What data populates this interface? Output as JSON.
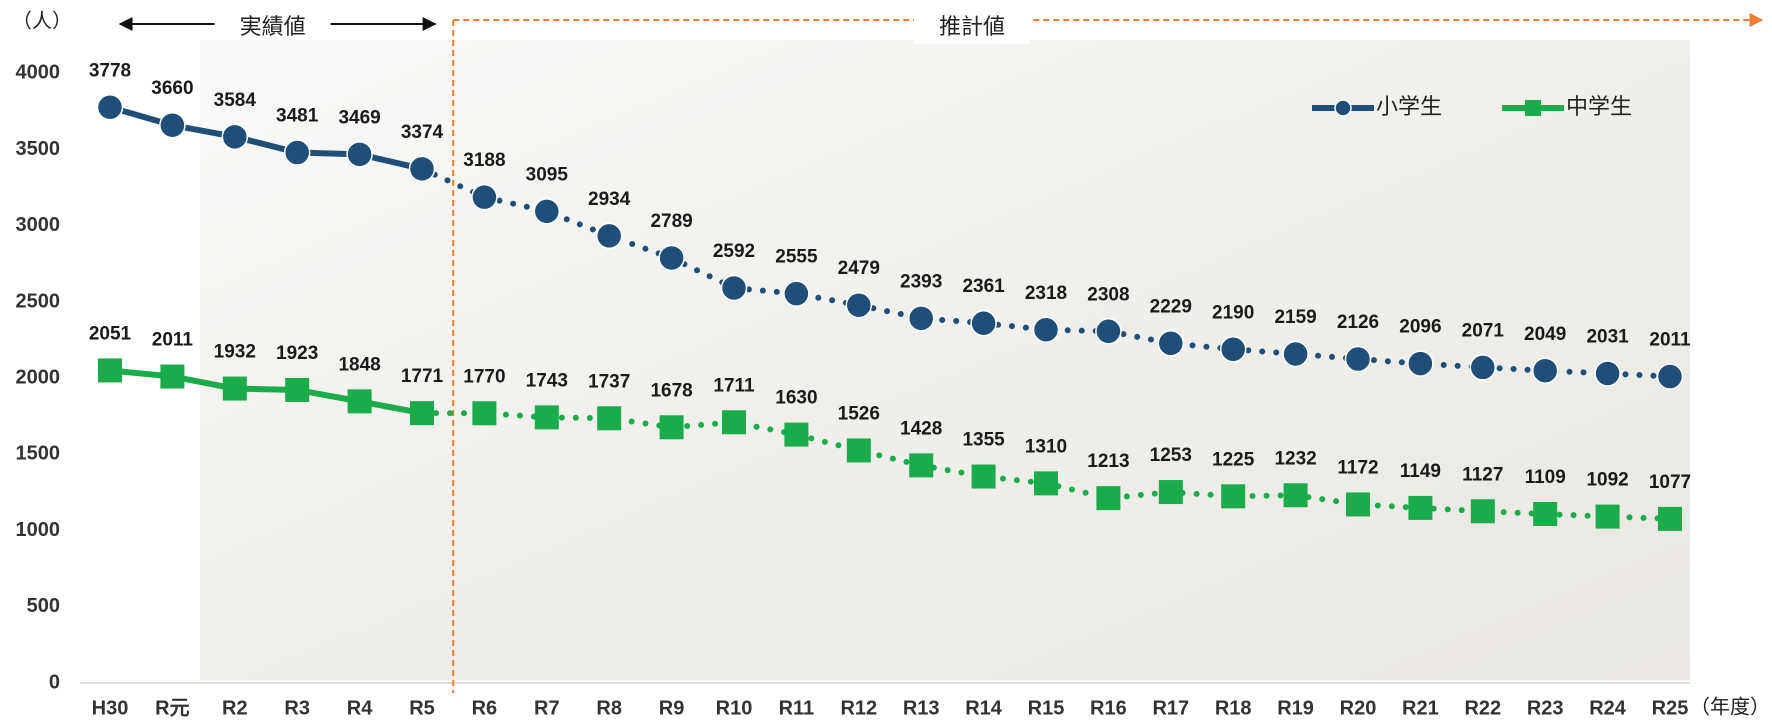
{
  "chart_data": {
    "type": "line",
    "categories": [
      "H30",
      "R元",
      "R2",
      "R3",
      "R4",
      "R5",
      "R6",
      "R7",
      "R8",
      "R9",
      "R10",
      "R11",
      "R12",
      "R13",
      "R14",
      "R15",
      "R16",
      "R17",
      "R18",
      "R19",
      "R20",
      "R21",
      "R22",
      "R23",
      "R24",
      "R25"
    ],
    "series": [
      {
        "name": "小学生",
        "color": "#1f4e79",
        "marker": "circle",
        "values": [
          3778,
          3660,
          3584,
          3481,
          3469,
          3374,
          3188,
          3095,
          2934,
          2789,
          2592,
          2555,
          2479,
          2393,
          2361,
          2318,
          2308,
          2229,
          2190,
          2159,
          2126,
          2096,
          2071,
          2049,
          2031,
          2011
        ]
      },
      {
        "name": "中学生",
        "color": "#1aab4b",
        "marker": "square",
        "values": [
          2051,
          2011,
          1932,
          1923,
          1848,
          1771,
          1770,
          1743,
          1737,
          1678,
          1711,
          1630,
          1526,
          1428,
          1355,
          1310,
          1213,
          1253,
          1225,
          1232,
          1172,
          1149,
          1127,
          1109,
          1092,
          1077
        ]
      }
    ],
    "ylim": [
      0,
      4300
    ],
    "yticks": [
      0,
      500,
      1000,
      1500,
      2000,
      2500,
      3000,
      3500,
      4000
    ],
    "y_unit": "（人）",
    "x_unit": "（年度）",
    "annotations": [
      {
        "text": "実績値",
        "from": "H30",
        "to": "R5"
      },
      {
        "text": "推計値",
        "from": "R5",
        "to": "R25"
      }
    ],
    "legend": "top-right"
  }
}
